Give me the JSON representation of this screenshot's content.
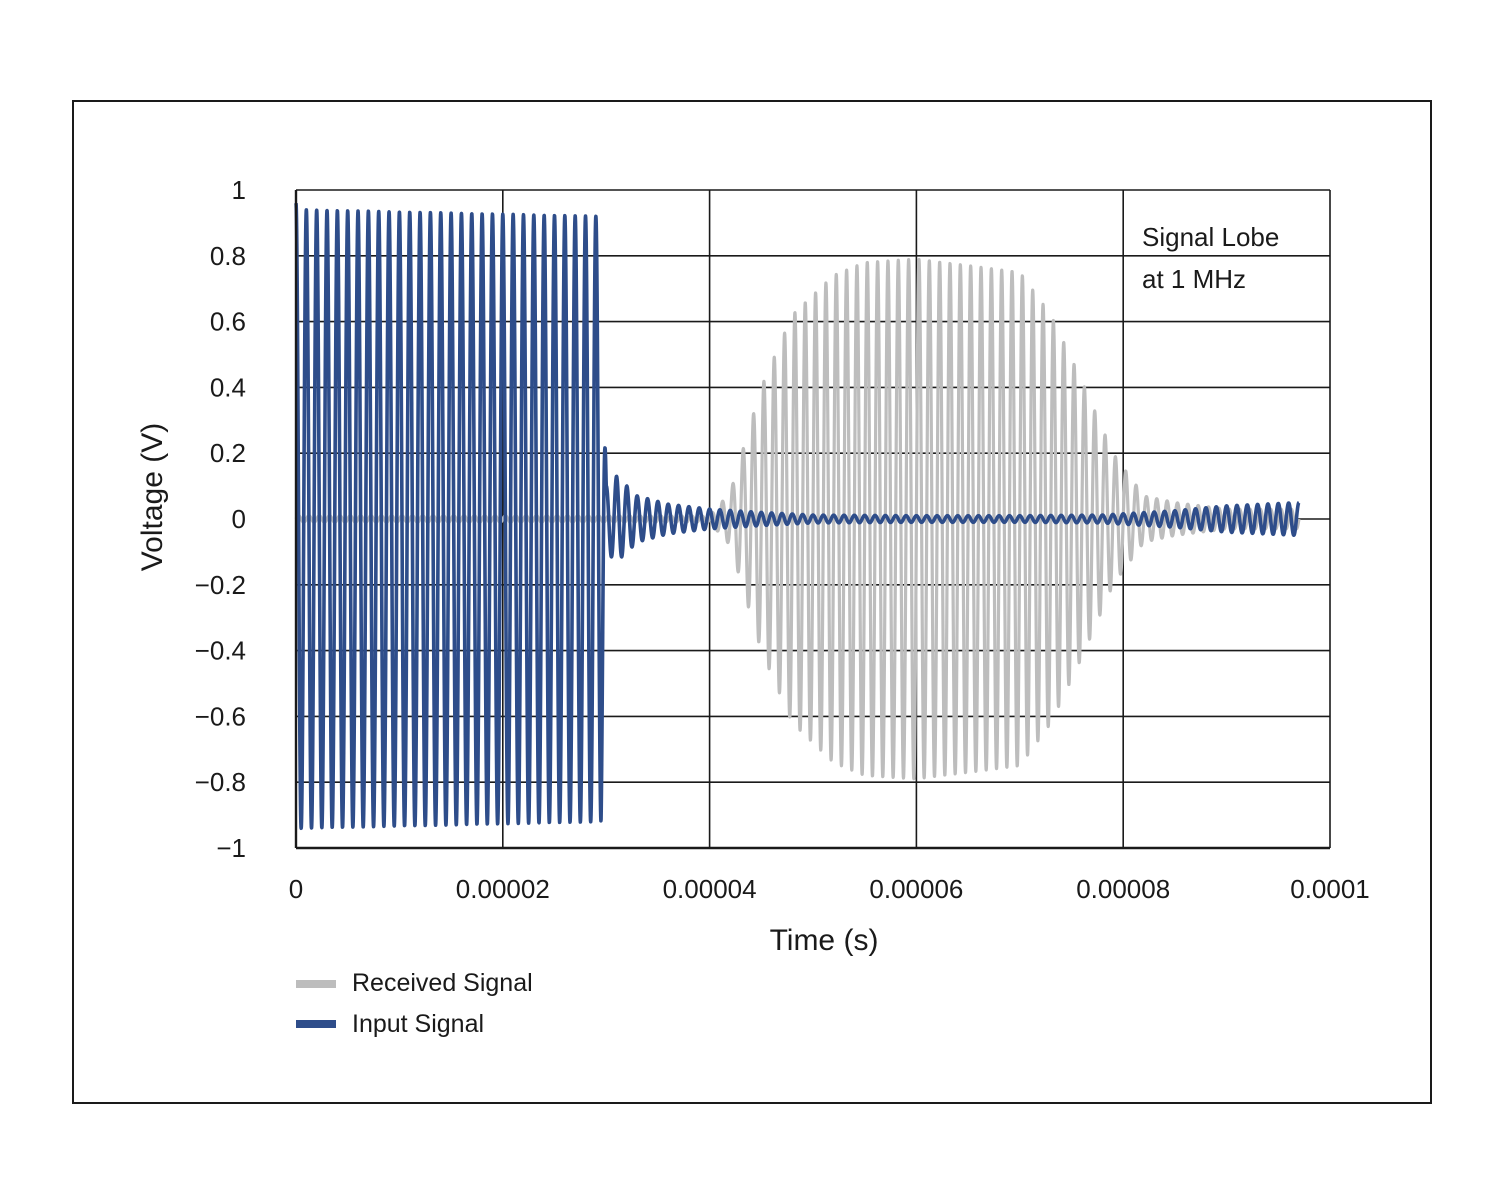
{
  "chart_data": {
    "type": "line",
    "xlabel": "Time (s)",
    "ylabel": "Voltage (V)",
    "xlim": [
      0,
      0.0001
    ],
    "ylim": [
      -1,
      1
    ],
    "x_ticks": [
      "0",
      "0.00002",
      "0.00004",
      "0.00006",
      "0.00008",
      "0.0001"
    ],
    "x_tick_values": [
      0,
      2e-05,
      4e-05,
      6e-05,
      8e-05,
      0.0001
    ],
    "y_ticks": [
      "1",
      "0.8",
      "0.6",
      "0.4",
      "0.2",
      "0",
      "−0.2",
      "−0.4",
      "−0.6",
      "−0.8",
      "−1"
    ],
    "y_tick_values": [
      1,
      0.8,
      0.6,
      0.4,
      0.2,
      0,
      -0.2,
      -0.4,
      -0.6,
      -0.8,
      -1
    ],
    "grid": true,
    "annotation": {
      "lines": [
        "Signal Lobe",
        "at 1 MHz"
      ],
      "placement": "top-right"
    },
    "legend": {
      "placement": "bottom-left",
      "entries": [
        "Received Signal",
        "Input Signal"
      ]
    },
    "series": [
      {
        "name": "Received Signal",
        "color": "#bdbdbd",
        "frequency_hz": 1000000,
        "description_points": {
          "t": [
            0,
            4e-05,
            4.2e-05,
            4.5e-05,
            4.8e-05,
            5.2e-05,
            5.5e-05,
            6e-05,
            6.5e-05,
            7e-05,
            7.3e-05,
            7.6e-05,
            7.9e-05,
            8.2e-05,
            8.5e-05,
            9e-05,
            9.7e-05
          ],
          "envelope": [
            0.01,
            0.01,
            0.08,
            0.4,
            0.62,
            0.74,
            0.78,
            0.79,
            0.77,
            0.75,
            0.62,
            0.42,
            0.2,
            0.07,
            0.05,
            0.03,
            0.03
          ]
        }
      },
      {
        "name": "Input Signal",
        "color": "#2e4d8a",
        "frequency_hz": 1000000,
        "description_points": {
          "t": [
            0,
            5e-07,
            2.9e-05,
            2.95e-05,
            3e-05,
            3.1e-05,
            3.3e-05,
            3.6e-05,
            4e-05,
            4.5e-05,
            5e-05,
            6e-05,
            7e-05,
            7.8e-05,
            8.5e-05,
            9e-05,
            9.7e-05
          ],
          "envelope": [
            0.96,
            0.94,
            0.92,
            0.92,
            0.1,
            0.13,
            0.07,
            0.045,
            0.03,
            0.02,
            0.012,
            0.01,
            0.01,
            0.012,
            0.025,
            0.04,
            0.05
          ]
        }
      }
    ]
  }
}
